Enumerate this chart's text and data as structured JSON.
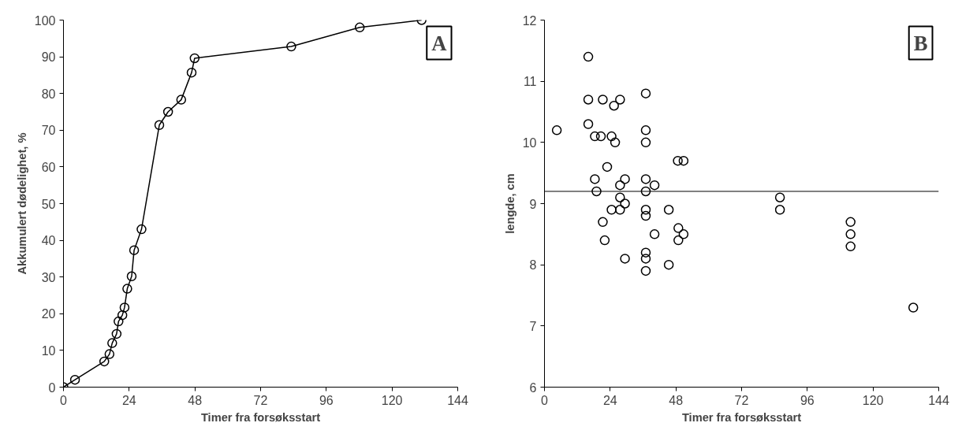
{
  "chart_data": [
    {
      "type": "line",
      "xlabel": "Timer fra forsøksstart",
      "ylabel": "Akkumulert dødelighet, %",
      "annotations": [
        "A"
      ],
      "x": [
        0,
        4.2,
        14.9,
        16.8,
        17.8,
        19.4,
        20.1,
        21.5,
        22.3,
        23.3,
        24.9,
        25.8,
        28.5,
        35,
        38.2,
        43,
        46.8,
        47.9,
        83.2,
        108.2,
        130.8
      ],
      "series": [
        {
          "color": "#000000",
          "values": [
            0,
            2,
            7,
            9,
            12,
            14.5,
            17.9,
            19.6,
            21.7,
            26.8,
            30.2,
            37.3,
            43,
            71.4,
            75,
            78.3,
            85.7,
            89.6,
            92.8,
            98,
            100
          ]
        }
      ],
      "xlim": [
        0,
        144
      ],
      "xticks": [
        0,
        24,
        48,
        72,
        96,
        120,
        144
      ],
      "ylim": [
        0,
        100
      ],
      "yticks": [
        0,
        10,
        20,
        30,
        40,
        50,
        60,
        70,
        80,
        90,
        100
      ],
      "marker": "circle",
      "line_style": "solid",
      "grid": false
    },
    {
      "type": "scatter",
      "xlabel": "Timer fra forsøksstart",
      "ylabel": "lengde, cm",
      "annotations": [
        "B"
      ],
      "x": [
        4.5,
        16,
        16,
        16,
        18.4,
        20.6,
        21.3,
        24.5,
        25.4,
        25.8,
        27.6,
        22.9,
        18.4,
        19,
        27.6,
        29.4,
        27.6,
        29.4,
        24.5,
        27.6,
        21.3,
        22,
        29.4,
        37,
        37,
        37,
        37,
        37,
        37,
        37,
        37,
        37,
        37,
        40.2,
        40.2,
        45.4,
        45.4,
        48.7,
        50.8,
        48.9,
        48.9,
        50.8,
        86,
        86,
        111.8,
        111.8,
        111.8,
        134.7
      ],
      "series": [
        {
          "color": "#000000",
          "values": [
            10.2,
            11.4,
            10.7,
            10.3,
            10.1,
            10.1,
            10.7,
            10.1,
            10.6,
            10.0,
            10.7,
            9.6,
            9.4,
            9.2,
            9.3,
            9.4,
            9.1,
            9.0,
            8.9,
            8.9,
            8.7,
            8.4,
            8.1,
            10.8,
            10.2,
            10.0,
            9.4,
            9.2,
            8.9,
            8.8,
            8.2,
            8.1,
            7.9,
            9.3,
            8.5,
            8.9,
            8.0,
            9.7,
            9.7,
            8.6,
            8.4,
            8.5,
            9.1,
            8.9,
            8.7,
            8.5,
            8.3,
            7.3
          ]
        }
      ],
      "xlim": [
        0,
        144
      ],
      "xticks": [
        0,
        24,
        48,
        72,
        96,
        120,
        144
      ],
      "ylim": [
        6,
        12
      ],
      "yticks": [
        6,
        7,
        8,
        9,
        10,
        11,
        12
      ],
      "ref_lines": [
        {
          "axis": "y",
          "value": 9.2,
          "color": "#000000"
        }
      ],
      "marker": "circle",
      "grid": false
    }
  ]
}
